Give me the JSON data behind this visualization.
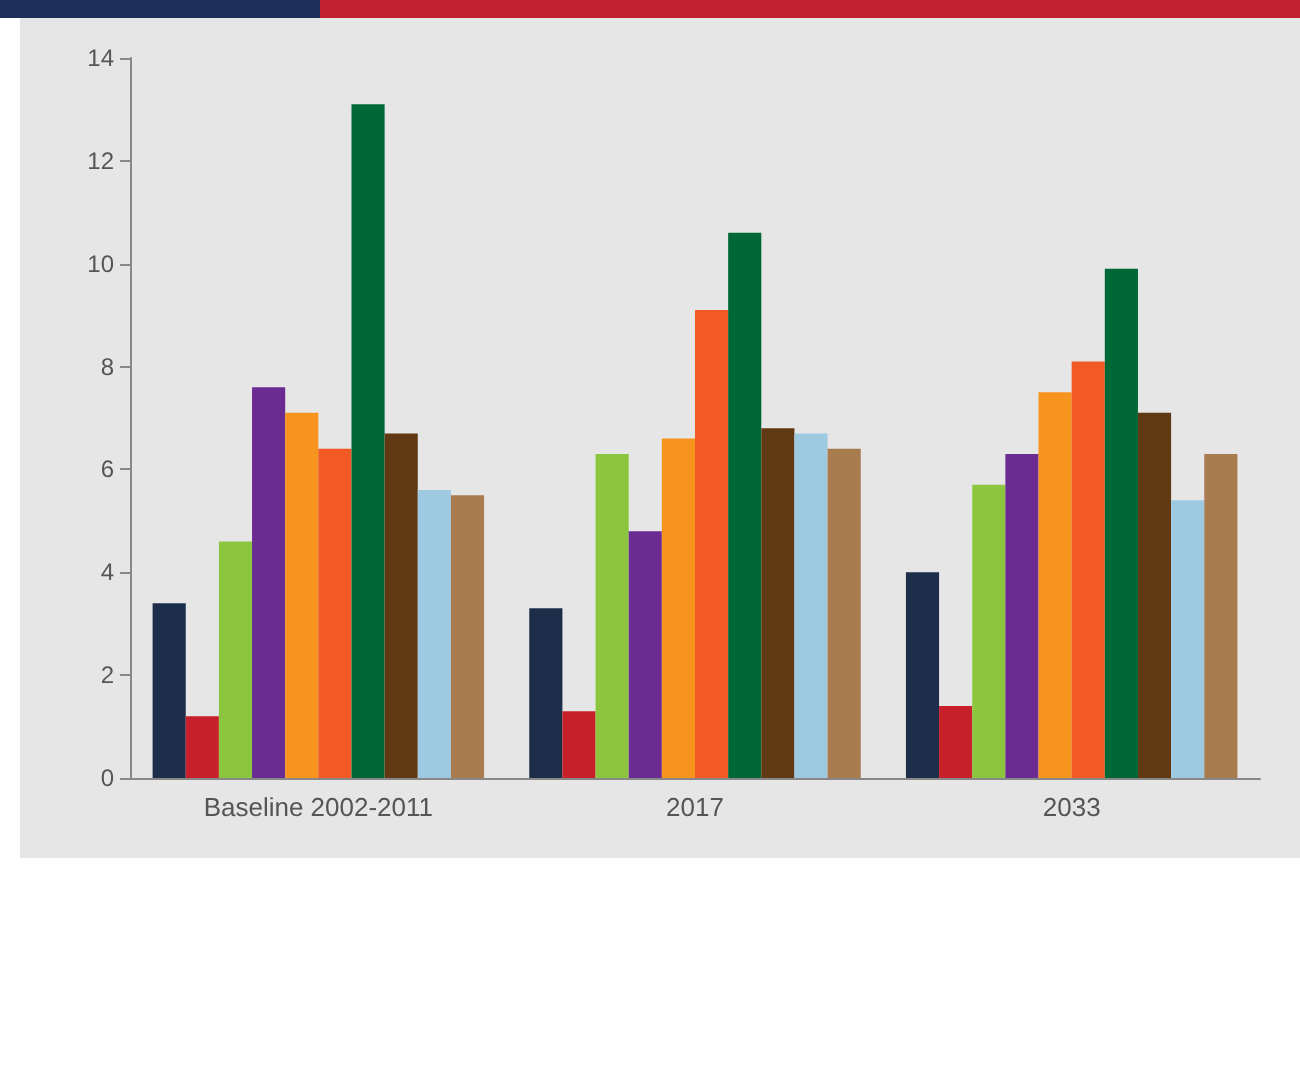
{
  "chart_data": {
    "type": "bar",
    "categories": [
      "Baseline 2002-2011",
      "2017",
      "2033"
    ],
    "series": [
      {
        "color": "#1c2e4a",
        "values": [
          3.4,
          3.3,
          4.0
        ]
      },
      {
        "color": "#c8202a",
        "values": [
          1.2,
          1.3,
          1.4
        ]
      },
      {
        "color": "#8cc63f",
        "values": [
          4.6,
          6.3,
          5.7
        ]
      },
      {
        "color": "#6a2c91",
        "values": [
          7.6,
          4.8,
          6.3
        ]
      },
      {
        "color": "#f7941d",
        "values": [
          7.1,
          6.6,
          7.5
        ]
      },
      {
        "color": "#f15a24",
        "values": [
          6.4,
          9.1,
          8.1
        ]
      },
      {
        "color": "#006837",
        "values": [
          13.1,
          10.6,
          9.9
        ]
      },
      {
        "color": "#603913",
        "values": [
          6.7,
          6.8,
          7.1
        ]
      },
      {
        "color": "#9ecae1",
        "values": [
          5.6,
          6.7,
          5.4
        ]
      },
      {
        "color": "#a97c50",
        "values": [
          5.5,
          6.4,
          6.3
        ]
      }
    ],
    "ylim": [
      0,
      14
    ],
    "yticks": [
      0,
      2,
      4,
      6,
      8,
      10,
      12,
      14
    ],
    "grid": false
  }
}
